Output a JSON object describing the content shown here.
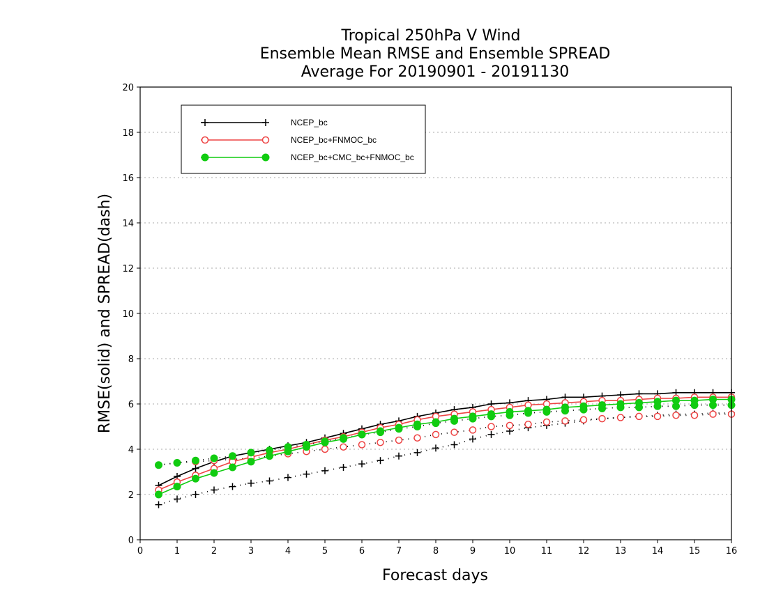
{
  "chart_data": {
    "type": "line",
    "title": [
      "Tropical 250hPa V Wind",
      "Ensemble Mean RMSE and Ensemble SPREAD",
      "Average For 20190901 - 20191130"
    ],
    "xlabel": "Forecast days",
    "ylabel": "RMSE(solid) and SPREAD(dash)",
    "xlim": [
      0,
      16
    ],
    "ylim": [
      0,
      20
    ],
    "xticks": [
      0,
      1,
      2,
      3,
      4,
      5,
      6,
      7,
      8,
      9,
      10,
      11,
      12,
      13,
      14,
      15,
      16
    ],
    "yticks": [
      0,
      2,
      4,
      6,
      8,
      10,
      12,
      14,
      16,
      18,
      20
    ],
    "grid": "horizontal dotted",
    "legend_position": "top-left",
    "x": [
      0.5,
      1,
      1.5,
      2,
      2.5,
      3,
      3.5,
      4,
      4.5,
      5,
      5.5,
      6,
      6.5,
      7,
      7.5,
      8,
      8.5,
      9,
      9.5,
      10,
      10.5,
      11,
      11.5,
      12,
      12.5,
      13,
      13.5,
      14,
      14.5,
      15,
      15.5,
      16
    ],
    "series": [
      {
        "name": "NCEP_bc",
        "color": "#000000",
        "marker": "plus",
        "rmse": [
          2.4,
          2.8,
          3.15,
          3.45,
          3.7,
          3.85,
          4.0,
          4.15,
          4.3,
          4.5,
          4.7,
          4.9,
          5.1,
          5.25,
          5.45,
          5.6,
          5.75,
          5.85,
          6.0,
          6.05,
          6.15,
          6.2,
          6.3,
          6.3,
          6.35,
          6.4,
          6.45,
          6.45,
          6.5,
          6.5,
          6.5,
          6.5
        ],
        "spread": [
          1.55,
          1.8,
          2.0,
          2.2,
          2.35,
          2.5,
          2.6,
          2.75,
          2.9,
          3.05,
          3.2,
          3.35,
          3.5,
          3.7,
          3.85,
          4.05,
          4.2,
          4.45,
          4.65,
          4.8,
          4.95,
          5.05,
          5.15,
          5.25,
          5.35,
          5.4,
          5.45,
          5.5,
          5.55,
          5.55,
          5.6,
          5.6
        ]
      },
      {
        "name": "NCEP_bc+FNMOC_bc",
        "color": "#ee4444",
        "marker": "open-circle",
        "rmse": [
          2.2,
          2.55,
          2.85,
          3.15,
          3.45,
          3.65,
          3.85,
          4.0,
          4.2,
          4.4,
          4.55,
          4.75,
          4.95,
          5.1,
          5.3,
          5.45,
          5.55,
          5.65,
          5.75,
          5.85,
          5.95,
          6.0,
          6.05,
          6.1,
          6.15,
          6.15,
          6.2,
          6.25,
          6.25,
          6.3,
          6.3,
          6.3
        ],
        "spread": [
          3.3,
          3.4,
          3.45,
          3.5,
          3.55,
          3.6,
          3.7,
          3.8,
          3.9,
          4.0,
          4.1,
          4.2,
          4.3,
          4.4,
          4.5,
          4.65,
          4.75,
          4.85,
          5.0,
          5.05,
          5.1,
          5.2,
          5.25,
          5.3,
          5.35,
          5.4,
          5.45,
          5.45,
          5.5,
          5.5,
          5.55,
          5.55
        ]
      },
      {
        "name": "NCEP_bc+CMC_bc+FNMOC_bc",
        "color": "#11cc11",
        "marker": "filled-circle",
        "rmse": [
          2.0,
          2.35,
          2.7,
          2.95,
          3.2,
          3.45,
          3.7,
          3.9,
          4.1,
          4.3,
          4.45,
          4.65,
          4.8,
          4.95,
          5.1,
          5.2,
          5.35,
          5.45,
          5.55,
          5.65,
          5.7,
          5.75,
          5.85,
          5.9,
          5.95,
          6.0,
          6.05,
          6.1,
          6.15,
          6.15,
          6.2,
          6.2
        ],
        "spread": [
          3.3,
          3.4,
          3.5,
          3.6,
          3.7,
          3.85,
          3.95,
          4.1,
          4.2,
          4.35,
          4.5,
          4.65,
          4.75,
          4.9,
          5.0,
          5.15,
          5.25,
          5.35,
          5.45,
          5.5,
          5.6,
          5.65,
          5.7,
          5.75,
          5.8,
          5.85,
          5.85,
          5.9,
          5.9,
          5.95,
          5.95,
          5.95
        ]
      }
    ]
  }
}
